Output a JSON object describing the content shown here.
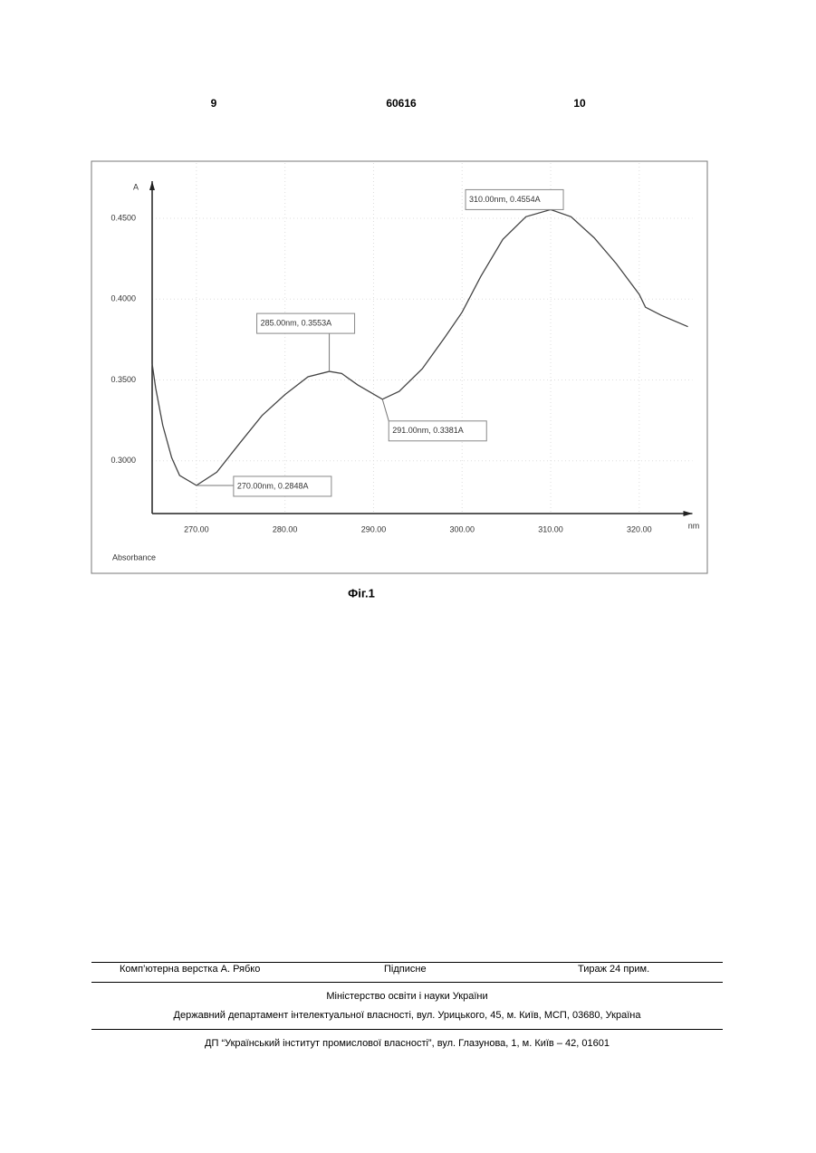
{
  "header": {
    "left": "9",
    "center": "60616",
    "right": "10"
  },
  "chart_data": {
    "type": "line",
    "y_axis_label": "A",
    "x_axis_label": "nm",
    "corner_label": "Absorbance",
    "x": [
      265,
      265.4,
      266.2,
      267.2,
      268.1,
      270,
      272.3,
      274.9,
      277.4,
      280,
      282.6,
      285,
      286.4,
      288.2,
      291,
      292.9,
      295.5,
      298,
      300,
      302.1,
      304.6,
      307.2,
      310,
      312.3,
      314.9,
      317.4,
      320,
      320.7,
      322.5,
      325.5
    ],
    "values": [
      0.36,
      0.345,
      0.322,
      0.302,
      0.291,
      0.2848,
      0.293,
      0.311,
      0.328,
      0.341,
      0.352,
      0.3553,
      0.354,
      0.347,
      0.3381,
      0.343,
      0.357,
      0.376,
      0.392,
      0.414,
      0.437,
      0.451,
      0.4554,
      0.451,
      0.438,
      0.422,
      0.403,
      0.395,
      0.39,
      0.383
    ],
    "color": "#444444",
    "xlim": [
      265,
      326
    ],
    "ylim": [
      0.2674,
      0.473
    ],
    "xticks": [
      {
        "value": 270,
        "label": "270.00"
      },
      {
        "value": 280,
        "label": "280.00"
      },
      {
        "value": 290,
        "label": "290.00"
      },
      {
        "value": 300,
        "label": "300.00"
      },
      {
        "value": 310,
        "label": "310.00"
      },
      {
        "value": 320,
        "label": "320.00"
      }
    ],
    "yticks": [
      {
        "value": 0.3,
        "label": "0.3000"
      },
      {
        "value": 0.35,
        "label": "0.3500"
      },
      {
        "value": 0.4,
        "label": "0.4000"
      },
      {
        "value": 0.45,
        "label": "0.4500"
      }
    ],
    "grid": true,
    "annotations": [
      {
        "x": 310,
        "y": 0.4554,
        "label": "310.00nm, 0.4554A"
      },
      {
        "x": 285,
        "y": 0.3553,
        "label": "285.00nm, 0.3553A"
      },
      {
        "x": 291,
        "y": 0.3381,
        "label": "291.00nm, 0.3381A"
      },
      {
        "x": 270,
        "y": 0.2848,
        "label": "270.00nm, 0.2848A"
      }
    ],
    "caption": "Фіг.1"
  },
  "footer": {
    "layout": "Комп’ютерна верстка А. Рябко",
    "signed": "Підписне",
    "circulation": "Тираж 24 прим.",
    "ministry": "Міністерство освіти і науки України",
    "department": "Державний департамент інтелектуальної власності, вул. Урицького, 45, м. Київ, МСП, 03680, Україна",
    "institute": "ДП “Український інститут промислової власності”, вул. Глазунова, 1, м. Київ – 42, 01601"
  }
}
